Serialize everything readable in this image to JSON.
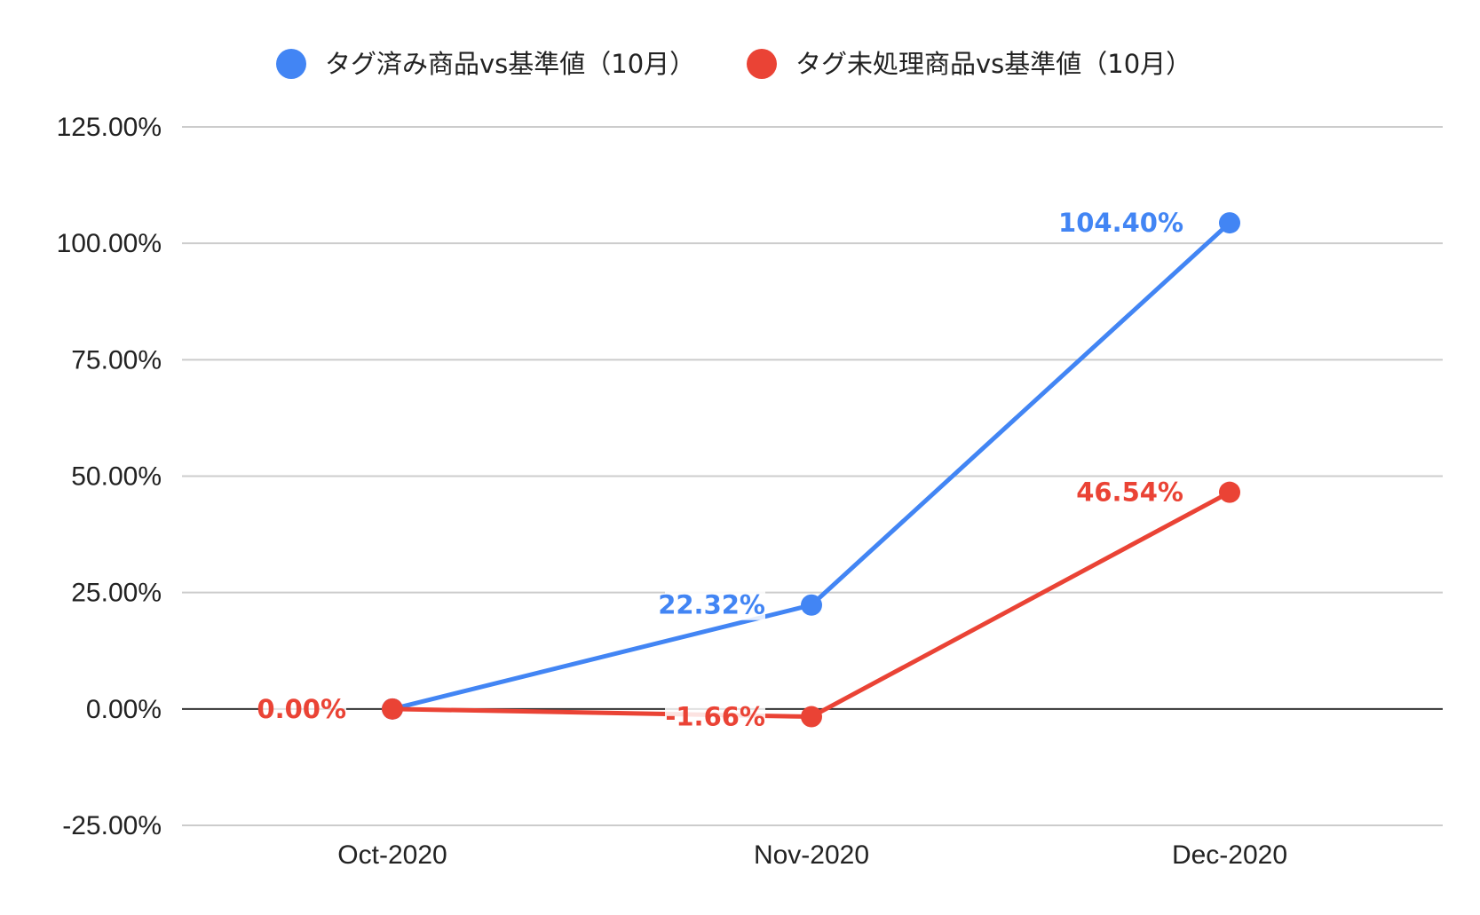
{
  "chart_data": {
    "type": "line",
    "categories": [
      "Oct-2020",
      "Nov-2020",
      "Dec-2020"
    ],
    "series": [
      {
        "name": "タグ済み商品vs基準値（10月）",
        "color": "#4285f4",
        "values": [
          0.0,
          22.32,
          104.4
        ],
        "labels": [
          "",
          "22.32%",
          "104.40%"
        ]
      },
      {
        "name": "タグ未処理商品vs基準値（10月）",
        "color": "#ea4335",
        "values": [
          0.0,
          -1.66,
          46.54
        ],
        "labels": [
          "0.00%",
          "-1.66%",
          "46.54%"
        ]
      }
    ],
    "ylim": [
      -25,
      125
    ],
    "yticks": [
      125,
      100,
      75,
      50,
      25,
      0,
      -25
    ],
    "ytick_labels": [
      "125.00%",
      "100.00%",
      "75.00%",
      "50.00%",
      "25.00%",
      "0.00%",
      "-25.00%"
    ],
    "grid": true,
    "legend_position": "top"
  }
}
